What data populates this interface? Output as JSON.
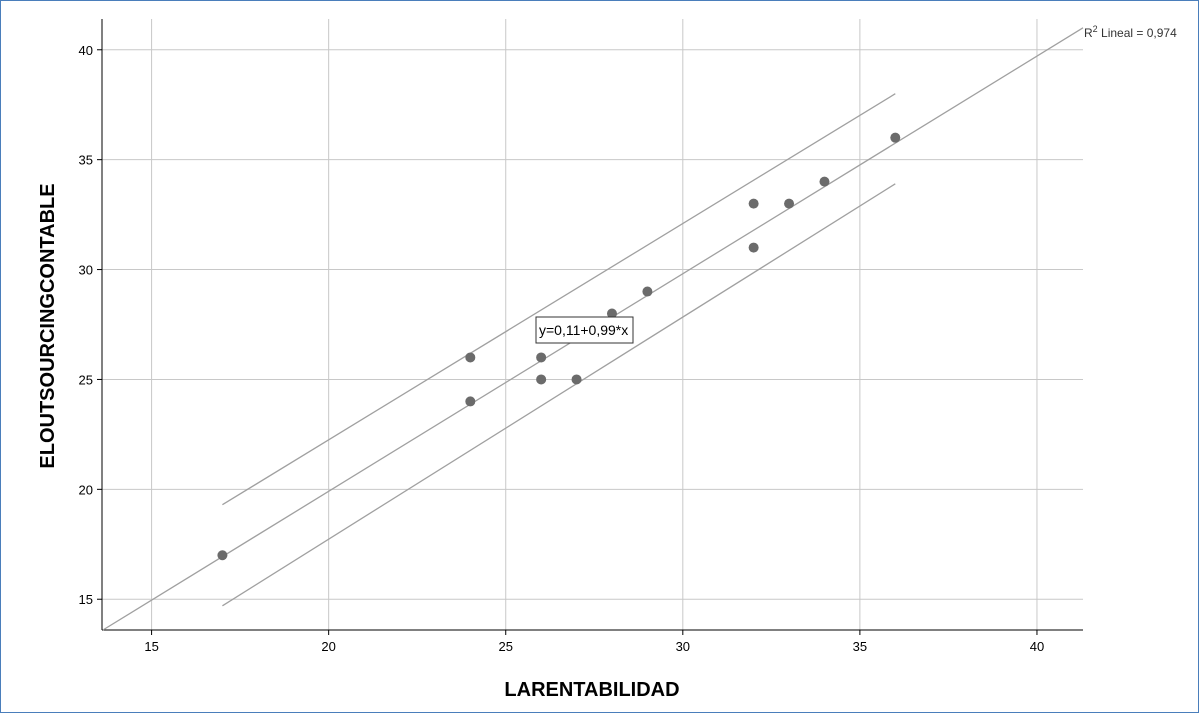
{
  "chart_data": {
    "type": "scatter",
    "title": "",
    "xlabel": "LARENTABILIDAD",
    "ylabel": "ELOUTSOURCINGCONTABLE",
    "xlim": [
      13.6,
      41.3
    ],
    "ylim": [
      13.6,
      41.4
    ],
    "xticks": [
      "15",
      "20",
      "25",
      "30",
      "35",
      "40"
    ],
    "yticks": [
      "15",
      "20",
      "25",
      "30",
      "35",
      "40"
    ],
    "grid": true,
    "point_color": "#6b6b6b",
    "line_color": "#a0a0a0",
    "points": [
      {
        "x": 17,
        "y": 17
      },
      {
        "x": 24,
        "y": 26
      },
      {
        "x": 24,
        "y": 24
      },
      {
        "x": 26,
        "y": 26
      },
      {
        "x": 26,
        "y": 25
      },
      {
        "x": 27,
        "y": 25
      },
      {
        "x": 28,
        "y": 28
      },
      {
        "x": 29,
        "y": 29
      },
      {
        "x": 32,
        "y": 33
      },
      {
        "x": 32,
        "y": 31
      },
      {
        "x": 33,
        "y": 33
      },
      {
        "x": 34,
        "y": 34
      },
      {
        "x": 36,
        "y": 36
      }
    ],
    "fit_line": {
      "intercept": 0.11,
      "slope": 0.99
    },
    "interval_lines": [
      {
        "x1": 17,
        "y1": 19.3,
        "x2": 36,
        "y2": 38.0
      },
      {
        "x1": 17,
        "y1": 14.7,
        "x2": 36,
        "y2": 33.9
      }
    ],
    "equation_label": "y=0,11+0,99*x",
    "r2_label": {
      "prefix": "R",
      "sup": "2",
      "suffix": " Lineal = 0,974"
    }
  }
}
